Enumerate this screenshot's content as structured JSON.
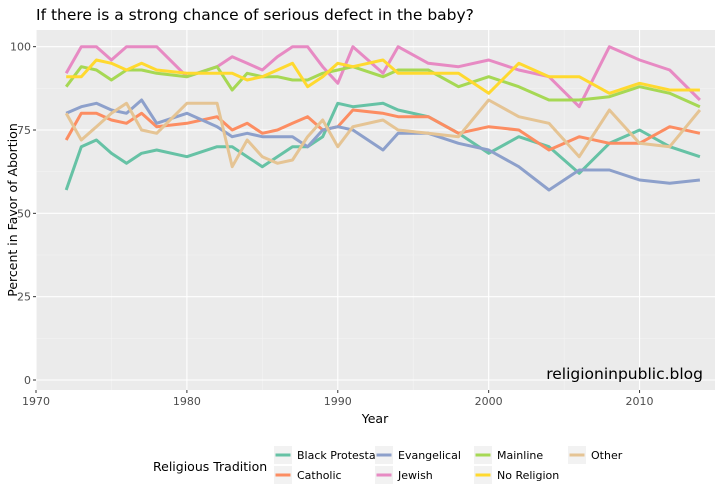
{
  "chart_data": {
    "type": "line",
    "title": "If there is a strong chance of serious defect in the baby?",
    "xlabel": "Year",
    "ylabel": "Percent in Favor of Abortion",
    "xlim": [
      1970,
      2015
    ],
    "ylim": [
      -3,
      105
    ],
    "x_ticks": [
      1970,
      1980,
      1990,
      2000,
      2010
    ],
    "y_ticks": [
      0,
      25,
      50,
      75,
      100
    ],
    "x_tick_labels": [
      "1970",
      "1980",
      "1990",
      "2000",
      "2010"
    ],
    "y_tick_labels": [
      "0",
      "25",
      "50",
      "75",
      "100"
    ],
    "grid": true,
    "watermark": "religioninpublic.blog",
    "legend": {
      "title": "Religious Tradition",
      "position": "bottom",
      "entries": [
        "Black Protestant",
        "Catholic",
        "Evangelical",
        "Jewish",
        "Mainline",
        "No Religion",
        "Other"
      ]
    },
    "x": [
      1972,
      1973,
      1974,
      1975,
      1976,
      1977,
      1978,
      1980,
      1982,
      1983,
      1984,
      1985,
      1986,
      1987,
      1988,
      1989,
      1990,
      1991,
      1993,
      1994,
      1996,
      1998,
      2000,
      2002,
      2004,
      2006,
      2008,
      2010,
      2012,
      2014
    ],
    "series": [
      {
        "name": "Black Protestant",
        "color": "#66C2A5",
        "values": [
          57,
          70,
          72,
          68,
          65,
          68,
          69,
          67,
          70,
          70,
          67,
          64,
          67,
          70,
          70,
          73,
          83,
          82,
          83,
          81,
          79,
          74,
          68,
          73,
          70,
          62,
          71,
          75,
          70,
          67
        ]
      },
      {
        "name": "Catholic",
        "color": "#FC8D62",
        "values": [
          72,
          80,
          80,
          78,
          77,
          80,
          76,
          77,
          79,
          75,
          77,
          74,
          75,
          77,
          79,
          75,
          76,
          81,
          80,
          79,
          79,
          74,
          76,
          75,
          69,
          73,
          71,
          71,
          76,
          74
        ]
      },
      {
        "name": "Evangelical",
        "color": "#8DA0CB",
        "values": [
          80,
          82,
          83,
          81,
          80,
          84,
          77,
          80,
          76,
          73,
          74,
          73,
          73,
          73,
          70,
          75,
          76,
          75,
          69,
          74,
          74,
          71,
          69,
          64,
          57,
          63,
          63,
          60,
          59,
          60
        ]
      },
      {
        "name": "Jewish",
        "color": "#E78AC3",
        "values": [
          92,
          100,
          100,
          96,
          100,
          100,
          100,
          91,
          94,
          97,
          95,
          93,
          97,
          100,
          100,
          94,
          89,
          100,
          92,
          100,
          95,
          94,
          96,
          93,
          91,
          82,
          100,
          96,
          93,
          84
        ]
      },
      {
        "name": "Mainline",
        "color": "#A6D854",
        "values": [
          88,
          94,
          93,
          90,
          93,
          93,
          92,
          91,
          94,
          87,
          92,
          91,
          91,
          90,
          90,
          92,
          93,
          94,
          91,
          93,
          93,
          88,
          91,
          88,
          84,
          84,
          85,
          88,
          86,
          82
        ]
      },
      {
        "name": "No Religion",
        "color": "#FFD92F",
        "values": [
          91,
          91,
          96,
          95,
          93,
          95,
          93,
          92,
          92,
          92,
          90,
          91,
          93,
          95,
          88,
          91,
          95,
          94,
          96,
          92,
          92,
          92,
          86,
          95,
          91,
          91,
          86,
          89,
          87,
          87
        ]
      },
      {
        "name": "Other",
        "color": "#E5C494",
        "values": [
          80,
          72,
          76,
          80,
          83,
          75,
          74,
          83,
          83,
          64,
          72,
          67,
          65,
          66,
          73,
          78,
          70,
          76,
          78,
          75,
          74,
          73,
          84,
          79,
          77,
          67,
          81,
          71,
          70,
          81
        ]
      }
    ]
  }
}
